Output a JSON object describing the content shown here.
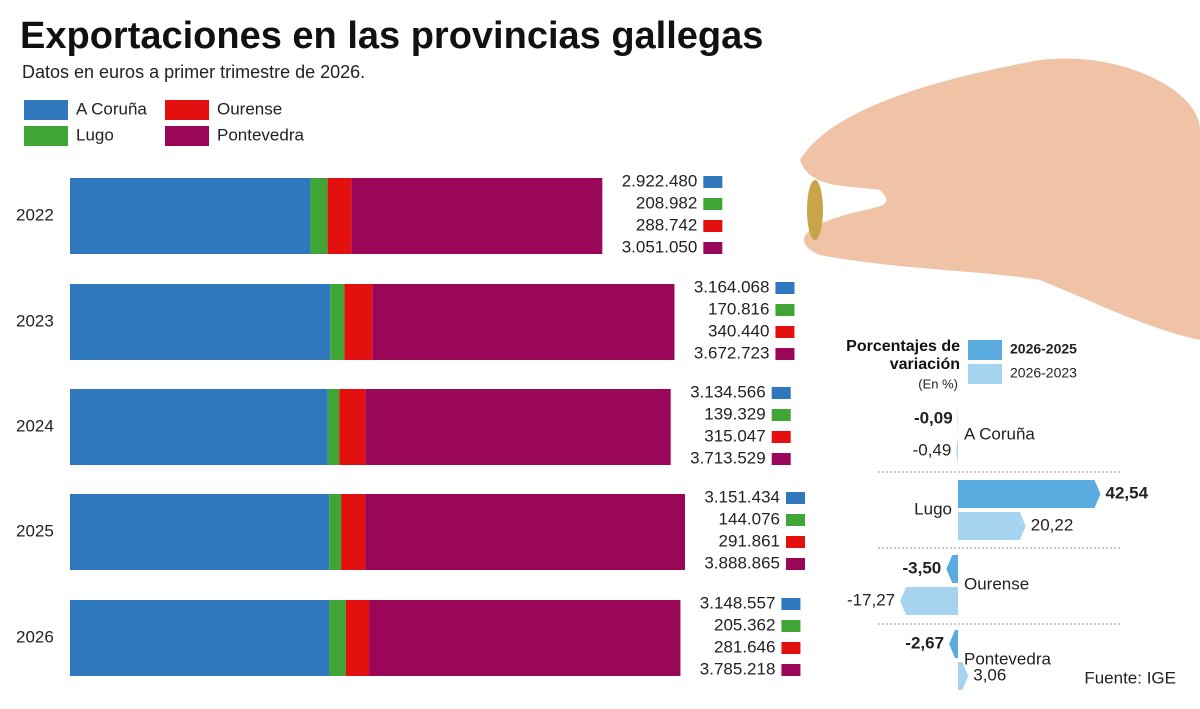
{
  "chart_data": [
    {
      "type": "stacked-bar-horizontal",
      "title": "Exportaciones en las provincias gallegas",
      "subtitle": "Datos en euros a primer trimestre de 2026.",
      "categories": [
        "2022",
        "2023",
        "2024",
        "2025",
        "2026"
      ],
      "series": [
        {
          "name": "A Coruña",
          "color": "#2f78bd",
          "values": [
            2922480,
            3164068,
            3134566,
            3151434,
            3148557
          ],
          "value_labels": [
            "2.922.480",
            "3.164.068",
            "3.134.566",
            "3.151.434",
            "3.148.557"
          ]
        },
        {
          "name": "Lugo",
          "color": "#3fa535",
          "values": [
            208982,
            170816,
            139329,
            144076,
            205362
          ],
          "value_labels": [
            "208.982",
            "170.816",
            "139.329",
            "144.076",
            "205.362"
          ]
        },
        {
          "name": "Ourense",
          "color": "#e3100f",
          "values": [
            288742,
            340440,
            315047,
            291861,
            281646
          ],
          "value_labels": [
            "288.742",
            "340.440",
            "315.047",
            "291.861",
            "281.646"
          ]
        },
        {
          "name": "Pontevedra",
          "color": "#9b0758",
          "values": [
            3051050,
            3672723,
            3713529,
            3888865,
            3785218
          ],
          "value_labels": [
            "3.051.050",
            "3.672.723",
            "3.713.529",
            "3.888.865",
            "3.785.218"
          ]
        }
      ]
    },
    {
      "type": "diverging-bar-horizontal",
      "title": "Porcentajes de variación",
      "subtitle": "(En %)",
      "categories": [
        "A Coruña",
        "Lugo",
        "Ourense",
        "Pontevedra"
      ],
      "series": [
        {
          "name": "2026-2025",
          "color": "#5aace0",
          "values": [
            -0.09,
            42.54,
            -3.5,
            -2.67
          ],
          "value_labels": [
            "-0,09",
            "42,54",
            "-3,50",
            "-2,67"
          ]
        },
        {
          "name": "2026-2023",
          "color": "#a6d3f0",
          "values": [
            -0.49,
            20.22,
            -17.27,
            3.06
          ],
          "value_labels": [
            "-0,49",
            "20,22",
            "-17,27",
            "3,06"
          ]
        }
      ]
    }
  ],
  "source": "Fuente: IGE"
}
